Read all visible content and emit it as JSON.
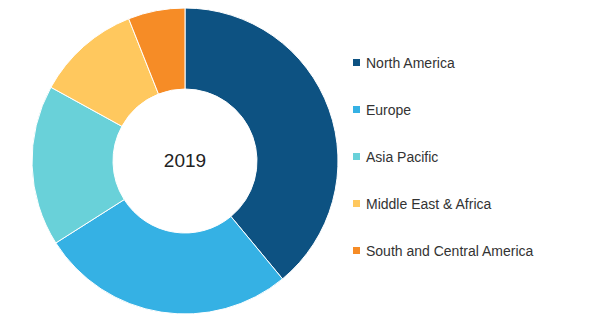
{
  "chart_data": {
    "type": "pie",
    "title": "2019",
    "categories": [
      "North America",
      "Europe",
      "Asia Pacific",
      "Middle East & Africa",
      "South and Central America"
    ],
    "values": [
      39,
      27,
      17,
      11,
      6
    ],
    "colors": [
      "#0d5282",
      "#35b1e4",
      "#69d1d9",
      "#ffc85e",
      "#f68c26"
    ],
    "legend": "right"
  }
}
